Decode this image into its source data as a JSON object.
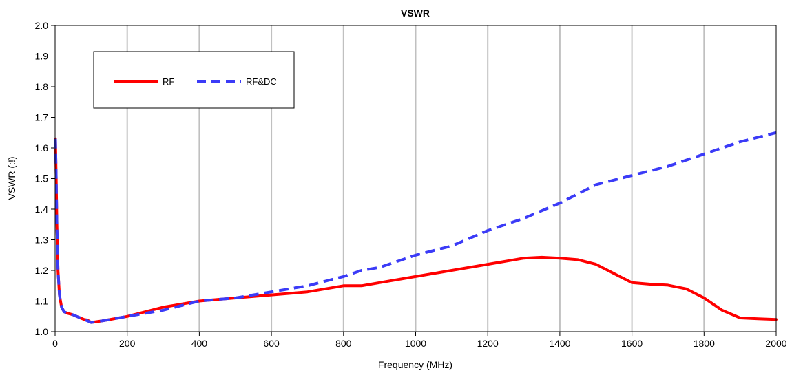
{
  "chart_data": {
    "type": "line",
    "title": "VSWR",
    "xlabel": "Frequency (MHz)",
    "ylabel": "VSWR (:!)",
    "xlim": [
      0,
      2000
    ],
    "ylim": [
      1.0,
      2.0
    ],
    "xticks": [
      0,
      200,
      400,
      600,
      800,
      1000,
      1200,
      1400,
      1600,
      1800,
      2000
    ],
    "yticks": [
      1.0,
      1.1,
      1.2,
      1.3,
      1.4,
      1.5,
      1.6,
      1.7,
      1.8,
      1.9,
      2.0
    ],
    "xtick_labels": [
      "0",
      "200",
      "400",
      "600",
      "800",
      "1000",
      "1200",
      "1400",
      "1600",
      "1800",
      "2000"
    ],
    "ytick_labels": [
      "1.0",
      "1.1",
      "1.2",
      "1.3",
      "1.4",
      "1.5",
      "1.6",
      "1.7",
      "1.8",
      "1.9",
      "2.0"
    ],
    "grid": "vertical gridlines only",
    "legend_position": "top-left",
    "series": [
      {
        "name": "RF",
        "color": "#ff0000",
        "style": "solid",
        "x": [
          1,
          3,
          5,
          8,
          12,
          18,
          25,
          35,
          50,
          60,
          70,
          80,
          90,
          100,
          130,
          200,
          300,
          400,
          500,
          600,
          700,
          800,
          850,
          900,
          1000,
          1100,
          1200,
          1300,
          1350,
          1400,
          1450,
          1500,
          1550,
          1600,
          1650,
          1700,
          1750,
          1800,
          1850,
          1900,
          1950,
          2000
        ],
        "y": [
          1.63,
          1.5,
          1.35,
          1.2,
          1.12,
          1.08,
          1.065,
          1.06,
          1.055,
          1.05,
          1.045,
          1.04,
          1.038,
          1.03,
          1.035,
          1.05,
          1.08,
          1.1,
          1.11,
          1.12,
          1.13,
          1.15,
          1.15,
          1.16,
          1.18,
          1.2,
          1.22,
          1.24,
          1.243,
          1.24,
          1.235,
          1.22,
          1.19,
          1.16,
          1.155,
          1.152,
          1.14,
          1.11,
          1.07,
          1.045,
          1.042,
          1.04
        ]
      },
      {
        "name": "RF&DC",
        "color": "#3b3bf7",
        "style": "dashed",
        "x": [
          1,
          3,
          5,
          8,
          12,
          18,
          25,
          35,
          50,
          60,
          70,
          80,
          90,
          100,
          130,
          200,
          300,
          400,
          500,
          600,
          700,
          800,
          850,
          900,
          1000,
          1100,
          1200,
          1300,
          1400,
          1500,
          1600,
          1700,
          1800,
          1900,
          2000
        ],
        "y": [
          1.63,
          1.5,
          1.35,
          1.2,
          1.12,
          1.08,
          1.065,
          1.06,
          1.055,
          1.05,
          1.045,
          1.04,
          1.035,
          1.03,
          1.035,
          1.05,
          1.07,
          1.1,
          1.11,
          1.13,
          1.15,
          1.18,
          1.2,
          1.21,
          1.25,
          1.28,
          1.33,
          1.37,
          1.42,
          1.48,
          1.51,
          1.54,
          1.58,
          1.62,
          1.65
        ]
      }
    ]
  }
}
